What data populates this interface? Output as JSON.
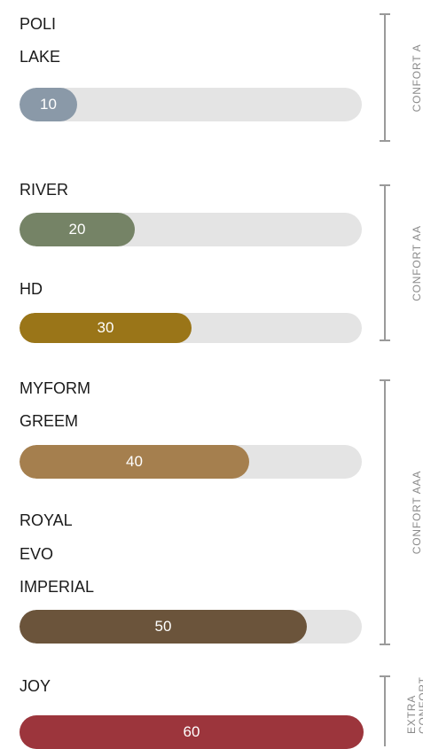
{
  "chart_data": {
    "type": "bar",
    "orientation": "horizontal",
    "bars": [
      {
        "models": [
          "POLI",
          "LAKE"
        ],
        "value": 10,
        "label": "10",
        "color": "#8a99a8"
      },
      {
        "models": [
          "RIVER"
        ],
        "value": 20,
        "label": "20",
        "color": "#758366"
      },
      {
        "models": [
          "HD"
        ],
        "value": 30,
        "label": "30",
        "color": "#9a7518"
      },
      {
        "models": [
          "MYFORM",
          "GREEM"
        ],
        "value": 40,
        "label": "40",
        "color": "#a57f4e"
      },
      {
        "models": [
          "ROYAL",
          "EVO",
          "IMPERIAL"
        ],
        "value": 50,
        "label": "50",
        "color": "#6b543b"
      },
      {
        "models": [
          "JOY"
        ],
        "value": 60,
        "label": "60",
        "color": "#9c353c"
      }
    ],
    "groups": [
      {
        "name": "CONFORT A",
        "bars": [
          0
        ]
      },
      {
        "name": "CONFORT AA",
        "bars": [
          1,
          2
        ]
      },
      {
        "name": "CONFORT AAA",
        "bars": [
          3,
          4
        ]
      },
      {
        "name": "EXTRA CONFORT",
        "bars": [
          5
        ]
      }
    ],
    "track_color": "#e4e4e4"
  }
}
